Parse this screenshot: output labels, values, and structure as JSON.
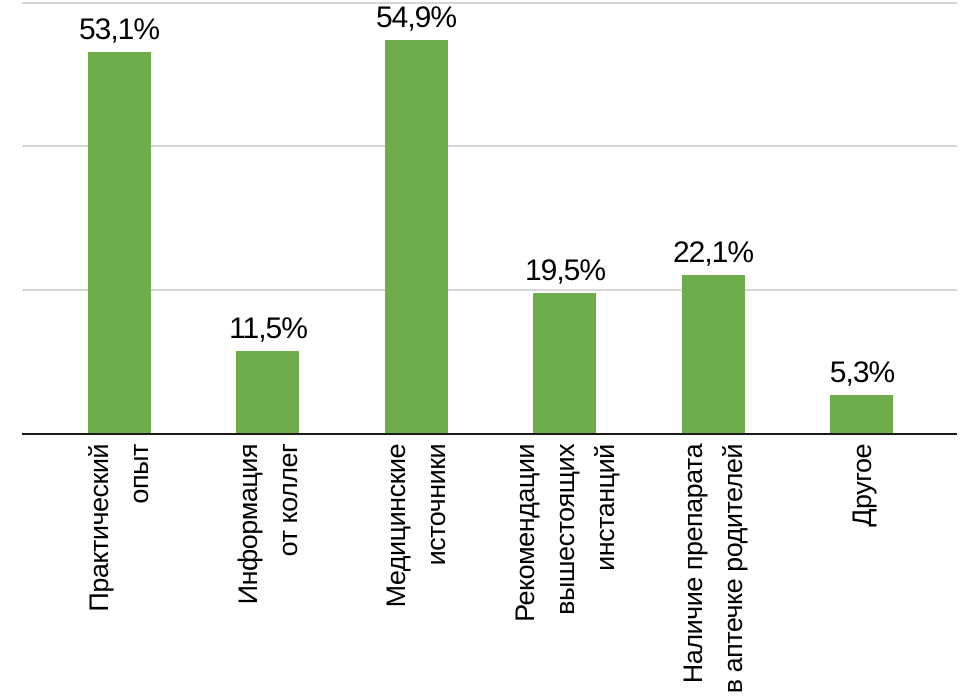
{
  "chart_data": {
    "type": "bar",
    "title": "",
    "xlabel": "",
    "ylabel": "",
    "categories": [
      "Практический опыт",
      "Информация от коллег",
      "Медицинские источники",
      "Рекомендации вышестоящих инстанций",
      "Наличие препарата в аптечке родителей",
      "Другое"
    ],
    "category_lines": [
      [
        "Практический",
        "опыт"
      ],
      [
        "Информация",
        "от коллег"
      ],
      [
        "Медицинские",
        "источники"
      ],
      [
        "Рекомендации",
        "вышестоящих",
        "инстанций"
      ],
      [
        "Наличие препарата",
        "в аптечке родителей"
      ],
      [
        "Другое"
      ]
    ],
    "values": [
      53.1,
      11.5,
      54.9,
      19.5,
      22.1,
      5.3
    ],
    "value_labels": [
      "53,1%",
      "11,5%",
      "54,9%",
      "19,5%",
      "22,1%",
      "5,3%"
    ],
    "ylim": [
      0,
      60
    ],
    "gridlines_pct": [
      20,
      40,
      60
    ],
    "grid": "horizontal",
    "legend": "none",
    "bar_color": "#6FAC4B",
    "gridline_color": "#D6D6D6",
    "axis_color": "#1A1A1A",
    "label_color": "#000000"
  }
}
